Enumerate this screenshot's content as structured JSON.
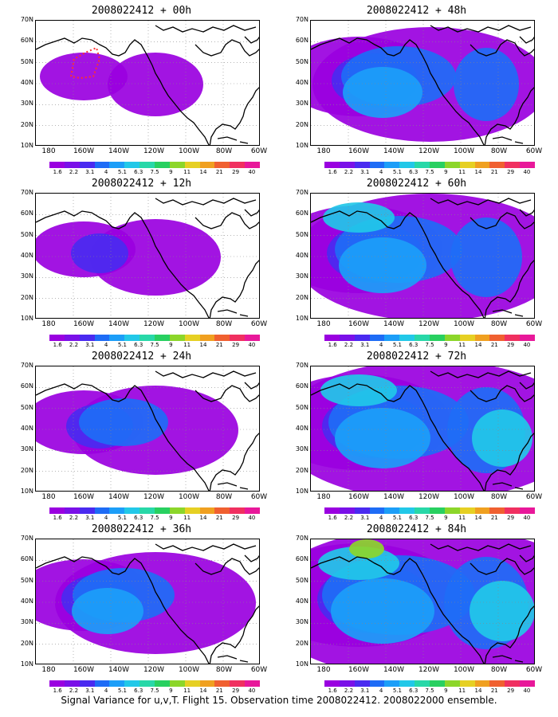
{
  "panels": [
    {
      "title": "2008022412 + 00h",
      "level": 0
    },
    {
      "title": "2008022412 + 48h",
      "level": 4
    },
    {
      "title": "2008022412 + 12h",
      "level": 1
    },
    {
      "title": "2008022412 + 60h",
      "level": 5
    },
    {
      "title": "2008022412 + 24h",
      "level": 2
    },
    {
      "title": "2008022412 + 72h",
      "level": 6
    },
    {
      "title": "2008022412 + 36h",
      "level": 3
    },
    {
      "title": "2008022412 + 84h",
      "level": 7
    }
  ],
  "axes": {
    "lat_labels": [
      "70N",
      "60N",
      "50N",
      "40N",
      "30N",
      "20N",
      "10N"
    ],
    "lon_labels": [
      "180",
      "160W",
      "140W",
      "120W",
      "100W",
      "80W",
      "60W"
    ]
  },
  "colorbar": {
    "labels": [
      "1.6",
      "2.2",
      "3.1",
      "4",
      "5.1",
      "6.3",
      "7.5",
      "9",
      "11",
      "14",
      "21",
      "29",
      "40"
    ],
    "colors": [
      "#9a00e0",
      "#7a10e8",
      "#4a2af0",
      "#1e6cf6",
      "#1c9ef8",
      "#22c8e8",
      "#28d8a8",
      "#28d060",
      "#8cd62a",
      "#e6d023",
      "#f0a020",
      "#f06030",
      "#f03060",
      "#e8189a"
    ]
  },
  "caption": "Signal Variance for u,v,T. Flight 15. Observation time 2008022412. 2008022000 ensemble."
}
